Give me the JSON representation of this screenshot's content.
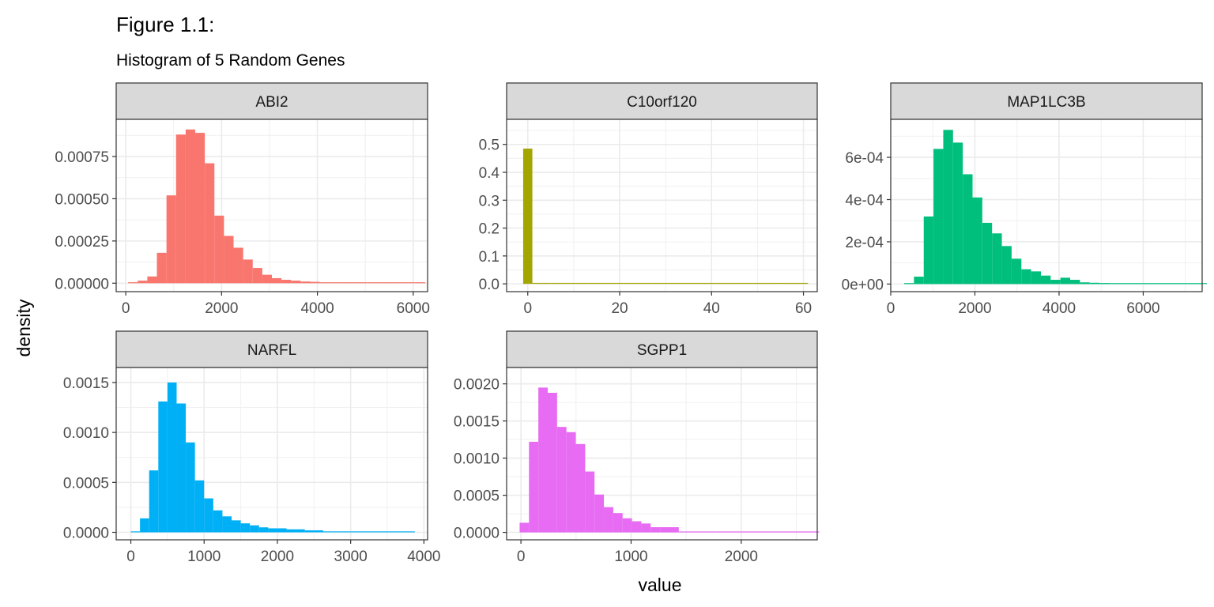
{
  "title": "Figure 1.1:",
  "subtitle": "Histogram of 5 Random Genes",
  "xlabel": "value",
  "ylabel": "density",
  "chart_data": [
    {
      "type": "bar",
      "panel": "ABI2",
      "color": "#F8766D",
      "xlim": [
        -200,
        6300
      ],
      "ylim": [
        -5e-05,
        0.00097
      ],
      "xticks": [
        {
          "v": 0,
          "label": "0"
        },
        {
          "v": 2000,
          "label": "2000"
        },
        {
          "v": 4000,
          "label": "4000"
        },
        {
          "v": 6000,
          "label": "6000"
        }
      ],
      "yticks": [
        {
          "v": 0,
          "label": "0.00000"
        },
        {
          "v": 0.00025,
          "label": "0.00025"
        },
        {
          "v": 0.0005,
          "label": "0.00050"
        },
        {
          "v": 0.00075,
          "label": "0.00075"
        }
      ],
      "bins": {
        "start": 50,
        "width": 200,
        "values": [
          5e-06,
          1.5e-05,
          4e-05,
          0.00018,
          0.00052,
          0.00088,
          0.00091,
          0.00089,
          0.00071,
          0.0004,
          0.00028,
          0.00021,
          0.00014,
          9e-05,
          5e-05,
          3e-05,
          2e-05,
          1.5e-05,
          1e-05,
          8e-06,
          5e-06,
          5e-06,
          3e-06,
          3e-06,
          3e-06,
          2e-06,
          3e-06,
          2e-06,
          2e-06,
          2e-06,
          2e-06
        ]
      }
    },
    {
      "type": "bar",
      "panel": "C10orf120",
      "color": "#A3A500",
      "xlim": [
        -4.6,
        63
      ],
      "ylim": [
        -0.028,
        0.59
      ],
      "xticks": [
        {
          "v": 0,
          "label": "0"
        },
        {
          "v": 20,
          "label": "20"
        },
        {
          "v": 40,
          "label": "40"
        },
        {
          "v": 60,
          "label": "60"
        }
      ],
      "yticks": [
        {
          "v": 0,
          "label": "0.0"
        },
        {
          "v": 0.1,
          "label": "0.1"
        },
        {
          "v": 0.2,
          "label": "0.2"
        },
        {
          "v": 0.3,
          "label": "0.3"
        },
        {
          "v": 0.4,
          "label": "0.4"
        },
        {
          "v": 0.5,
          "label": "0.5"
        }
      ],
      "bins": {
        "start": -1,
        "width": 2,
        "values": [
          0.485,
          0.003,
          0.0008,
          0.0005,
          0.0003,
          0.0002,
          0.0002,
          0.0001,
          0.0001,
          0.0001,
          0.0001,
          0.0001,
          0.0001,
          0.0001,
          0.0001,
          0.0001,
          0.0001,
          0.0001,
          0.0001,
          0.0001,
          0.0001,
          0.0001,
          0.0001,
          0.0001,
          0.0001,
          0.0001,
          0.0001,
          0.0001,
          0.0001,
          0.0001,
          0.0015
        ]
      }
    },
    {
      "type": "bar",
      "panel": "MAP1LC3B",
      "color": "#00BF7D",
      "xlim": [
        0,
        7400
      ],
      "ylim": [
        -3.6e-05,
        0.00078
      ],
      "xticks": [
        {
          "v": 0,
          "label": "0"
        },
        {
          "v": 2000,
          "label": "2000"
        },
        {
          "v": 4000,
          "label": "4000"
        },
        {
          "v": 6000,
          "label": "6000"
        }
      ],
      "yticks": [
        {
          "v": 0,
          "label": "0e+00"
        },
        {
          "v": 0.0002,
          "label": "2e-04"
        },
        {
          "v": 0.0004,
          "label": "4e-04"
        },
        {
          "v": 0.0006,
          "label": "6e-04"
        }
      ],
      "bins": {
        "start": 320,
        "width": 232,
        "values": [
          4e-06,
          3.5e-05,
          0.00032,
          0.00064,
          0.00073,
          0.00067,
          0.00052,
          0.00041,
          0.00029,
          0.00024,
          0.00018,
          0.00012,
          7e-05,
          6e-05,
          4e-05,
          2e-05,
          3e-05,
          2e-05,
          8e-06,
          6e-06,
          5e-06,
          4e-06,
          3e-06,
          2e-06,
          2e-06,
          3e-06,
          2e-06,
          1e-06,
          1e-06,
          2e-06,
          3e-06
        ]
      }
    },
    {
      "type": "bar",
      "panel": "NARFL",
      "color": "#00B0F6",
      "xlim": [
        -200,
        4050
      ],
      "ylim": [
        -7.5e-05,
        0.00165
      ],
      "xticks": [
        {
          "v": 0,
          "label": "0"
        },
        {
          "v": 1000,
          "label": "1000"
        },
        {
          "v": 2000,
          "label": "2000"
        },
        {
          "v": 3000,
          "label": "3000"
        },
        {
          "v": 4000,
          "label": "4000"
        }
      ],
      "yticks": [
        {
          "v": 0,
          "label": "0.0000"
        },
        {
          "v": 0.0005,
          "label": "0.0005"
        },
        {
          "v": 0.001,
          "label": "0.0010"
        },
        {
          "v": 0.0015,
          "label": "0.0015"
        }
      ],
      "bins": {
        "start": 0,
        "width": 125,
        "values": [
          5e-06,
          0.00014,
          0.00062,
          0.00131,
          0.0015,
          0.00129,
          0.0009,
          0.00052,
          0.00034,
          0.00022,
          0.00016,
          0.00012,
          9e-05,
          7e-05,
          5e-05,
          4e-05,
          4e-05,
          3e-05,
          3e-05,
          2e-05,
          2e-05,
          8e-06,
          6e-06,
          4e-06,
          4e-06,
          4e-06,
          3e-06,
          2e-06,
          3e-06,
          2e-06,
          2e-06
        ]
      }
    },
    {
      "type": "bar",
      "panel": "SGPP1",
      "color": "#E76BF3",
      "xlim": [
        -130,
        2690
      ],
      "ylim": [
        -0.0001,
        0.00222
      ],
      "xticks": [
        {
          "v": 0,
          "label": "0"
        },
        {
          "v": 1000,
          "label": "1000"
        },
        {
          "v": 2000,
          "label": "2000"
        }
      ],
      "yticks": [
        {
          "v": 0,
          "label": "0.0000"
        },
        {
          "v": 0.0005,
          "label": "0.0005"
        },
        {
          "v": 0.001,
          "label": "0.0010"
        },
        {
          "v": 0.0015,
          "label": "0.0015"
        },
        {
          "v": 0.002,
          "label": "0.0020"
        }
      ],
      "bins": {
        "start": -12,
        "width": 85,
        "values": [
          0.00013,
          0.00122,
          0.00195,
          0.00188,
          0.00142,
          0.00135,
          0.00119,
          0.00082,
          0.00051,
          0.00034,
          0.00026,
          0.00019,
          0.00015,
          0.00012,
          7e-05,
          7e-05,
          7e-05,
          8e-06,
          1.2e-05,
          1e-05,
          6e-06,
          5e-06,
          5e-06,
          4e-06,
          3e-06,
          2e-06,
          2e-06,
          2e-06,
          2e-06,
          2e-06,
          2e-06,
          2e-06
        ]
      }
    }
  ]
}
